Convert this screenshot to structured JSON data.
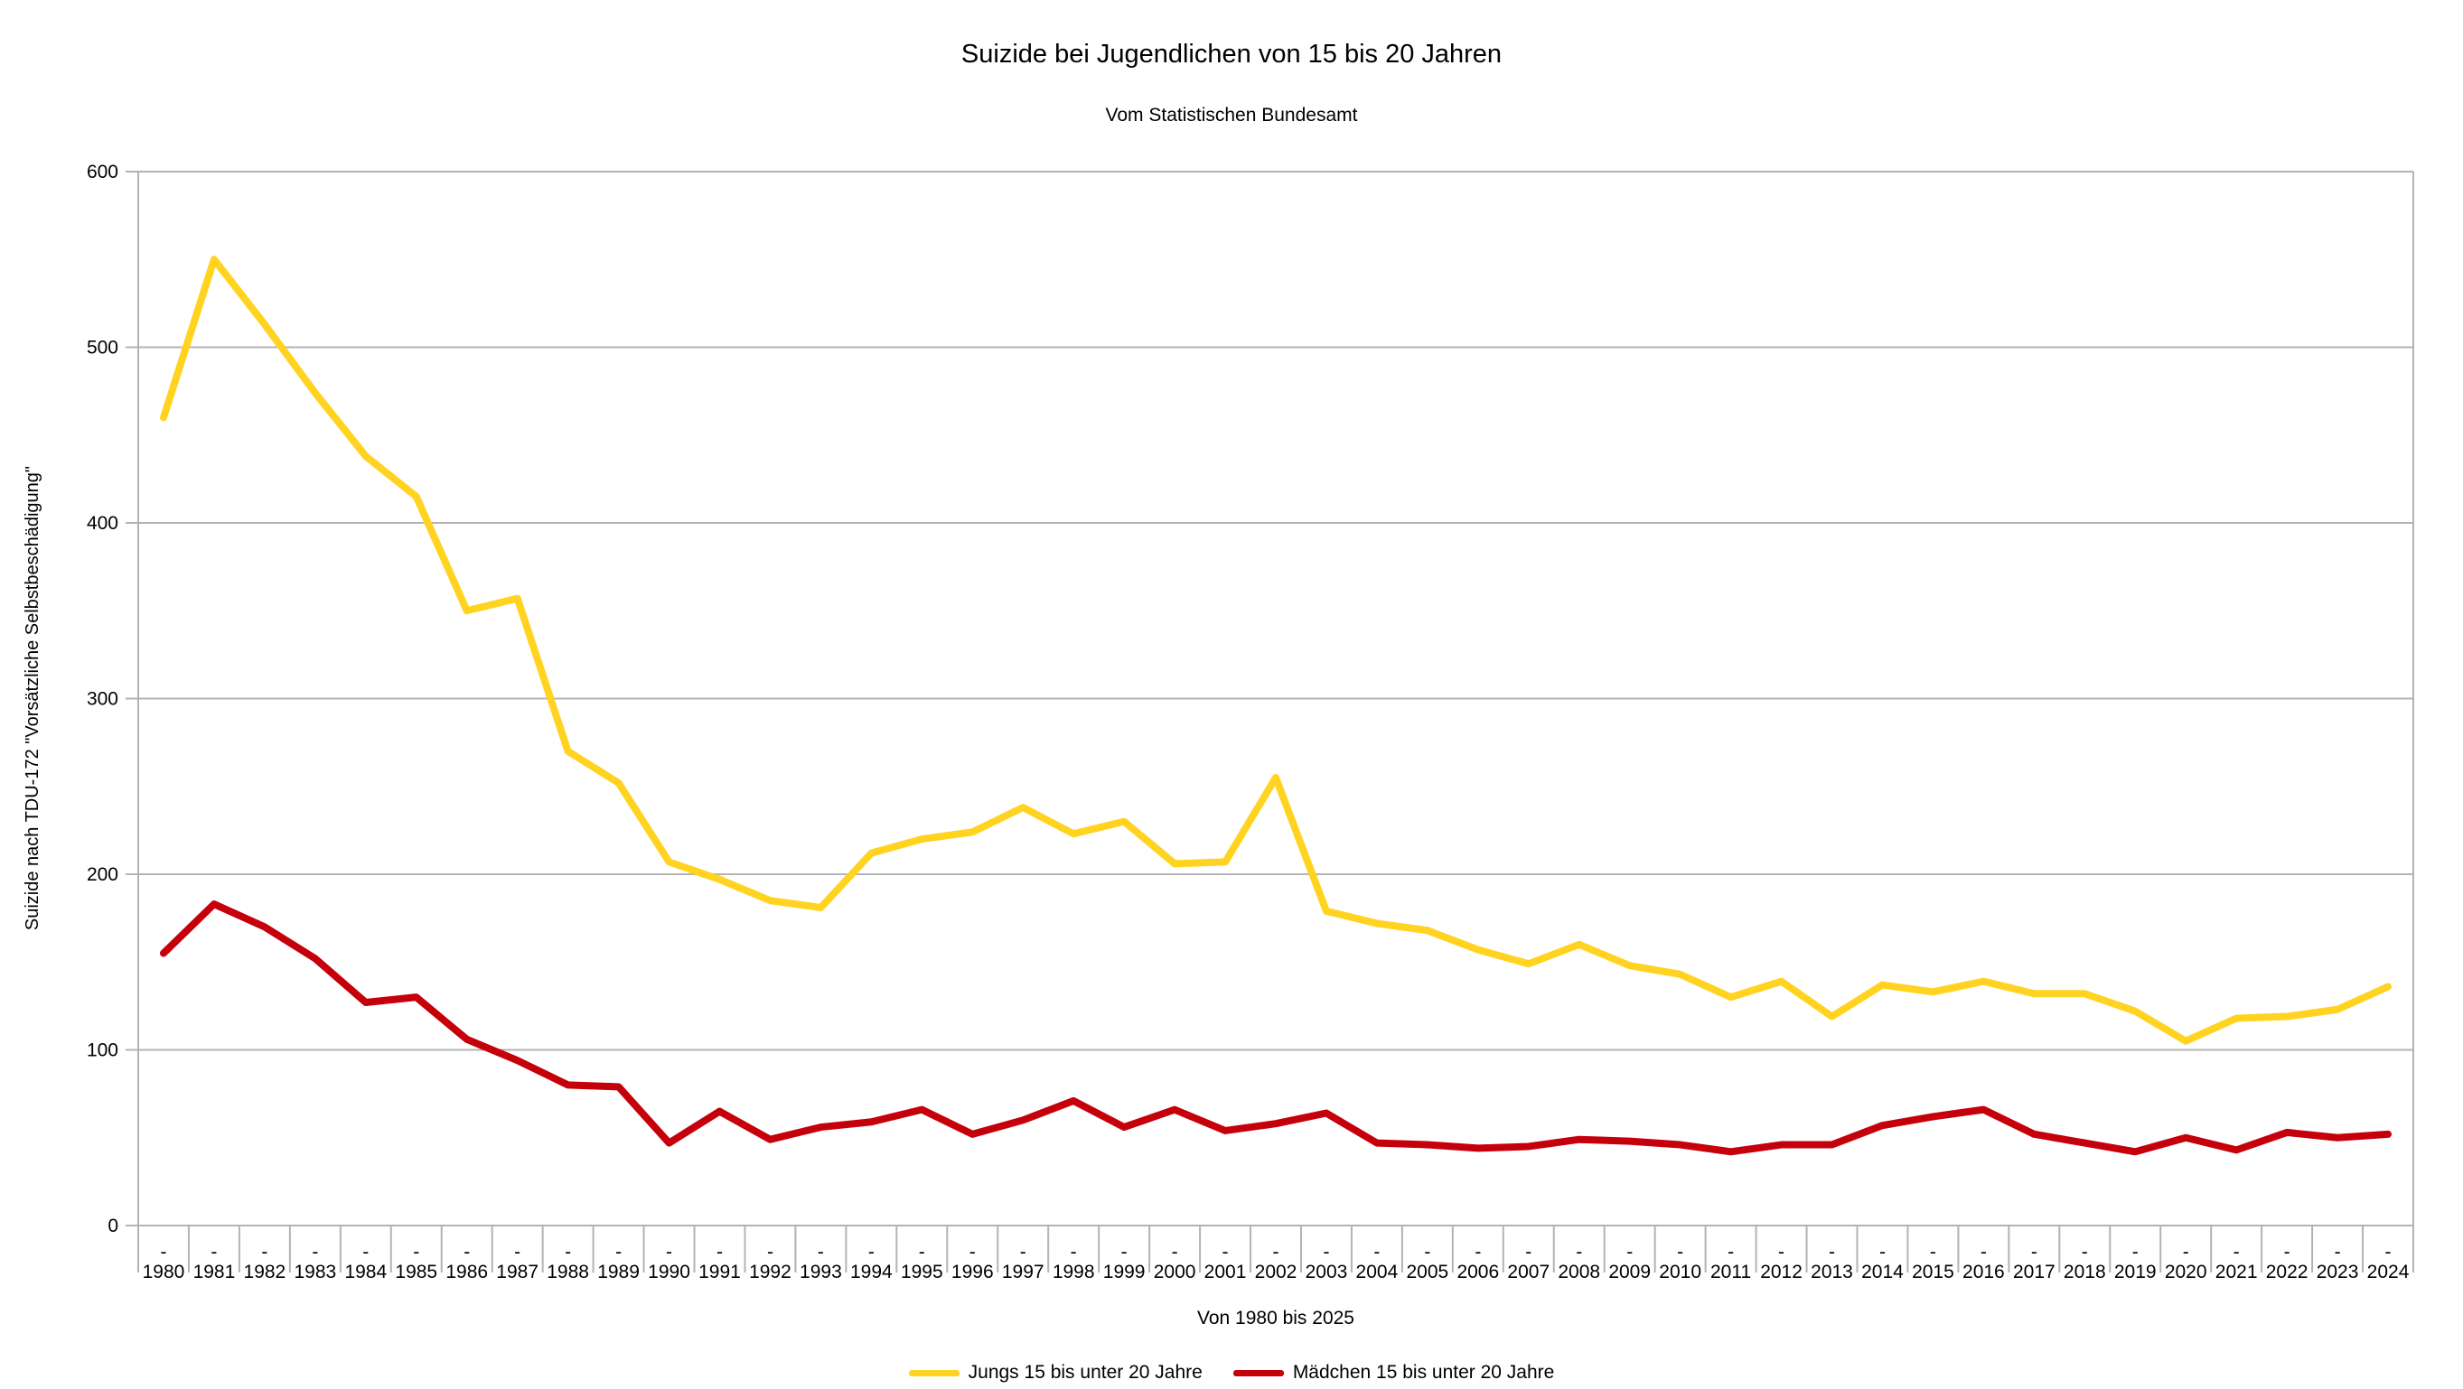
{
  "chart_data": {
    "type": "line",
    "title": "Suizide bei Jugendlichen von 15 bis 20 Jahren",
    "subtitle": "Vom Statistischen Bundesamt",
    "xlabel": "Von 1980 bis 2025",
    "ylabel": "Suizide nach TDU-172 \"Vorsätzliche Selbstbeschädigung\"",
    "ylim": [
      0,
      600
    ],
    "yticks": [
      0,
      100,
      200,
      300,
      400,
      500,
      600
    ],
    "grid": true,
    "legend_position": "bottom",
    "x_tick_prefix": "-",
    "categories": [
      1980,
      1981,
      1982,
      1983,
      1984,
      1985,
      1986,
      1987,
      1988,
      1989,
      1990,
      1991,
      1992,
      1993,
      1994,
      1995,
      1996,
      1997,
      1998,
      1999,
      2000,
      2001,
      2002,
      2003,
      2004,
      2005,
      2006,
      2007,
      2008,
      2009,
      2010,
      2011,
      2012,
      2013,
      2014,
      2015,
      2016,
      2017,
      2018,
      2019,
      2020,
      2021,
      2022,
      2023,
      2024
    ],
    "series": [
      {
        "name": "Jungs 15 bis unter 20 Jahre",
        "color": "#ffd320",
        "values": [
          460,
          550,
          513,
          474,
          438,
          415,
          350,
          357,
          270,
          252,
          207,
          197,
          185,
          181,
          212,
          220,
          224,
          238,
          223,
          230,
          206,
          207,
          255,
          179,
          172,
          168,
          157,
          149,
          160,
          148,
          143,
          130,
          139,
          119,
          137,
          133,
          139,
          132,
          132,
          122,
          105,
          118,
          119,
          123,
          136
        ]
      },
      {
        "name": "Mädchen 15 bis unter 20 Jahre",
        "color": "#c5000b",
        "values": [
          155,
          183,
          170,
          152,
          127,
          130,
          106,
          94,
          80,
          79,
          47,
          65,
          49,
          56,
          59,
          66,
          52,
          60,
          71,
          56,
          66,
          54,
          58,
          64,
          47,
          46,
          44,
          45,
          49,
          48,
          46,
          42,
          46,
          46,
          57,
          62,
          66,
          52,
          47,
          42,
          50,
          43,
          53,
          50,
          52
        ]
      }
    ],
    "colors": {
      "grid": "#b3b3b3",
      "text": "#000000",
      "background": "#ffffff"
    }
  }
}
